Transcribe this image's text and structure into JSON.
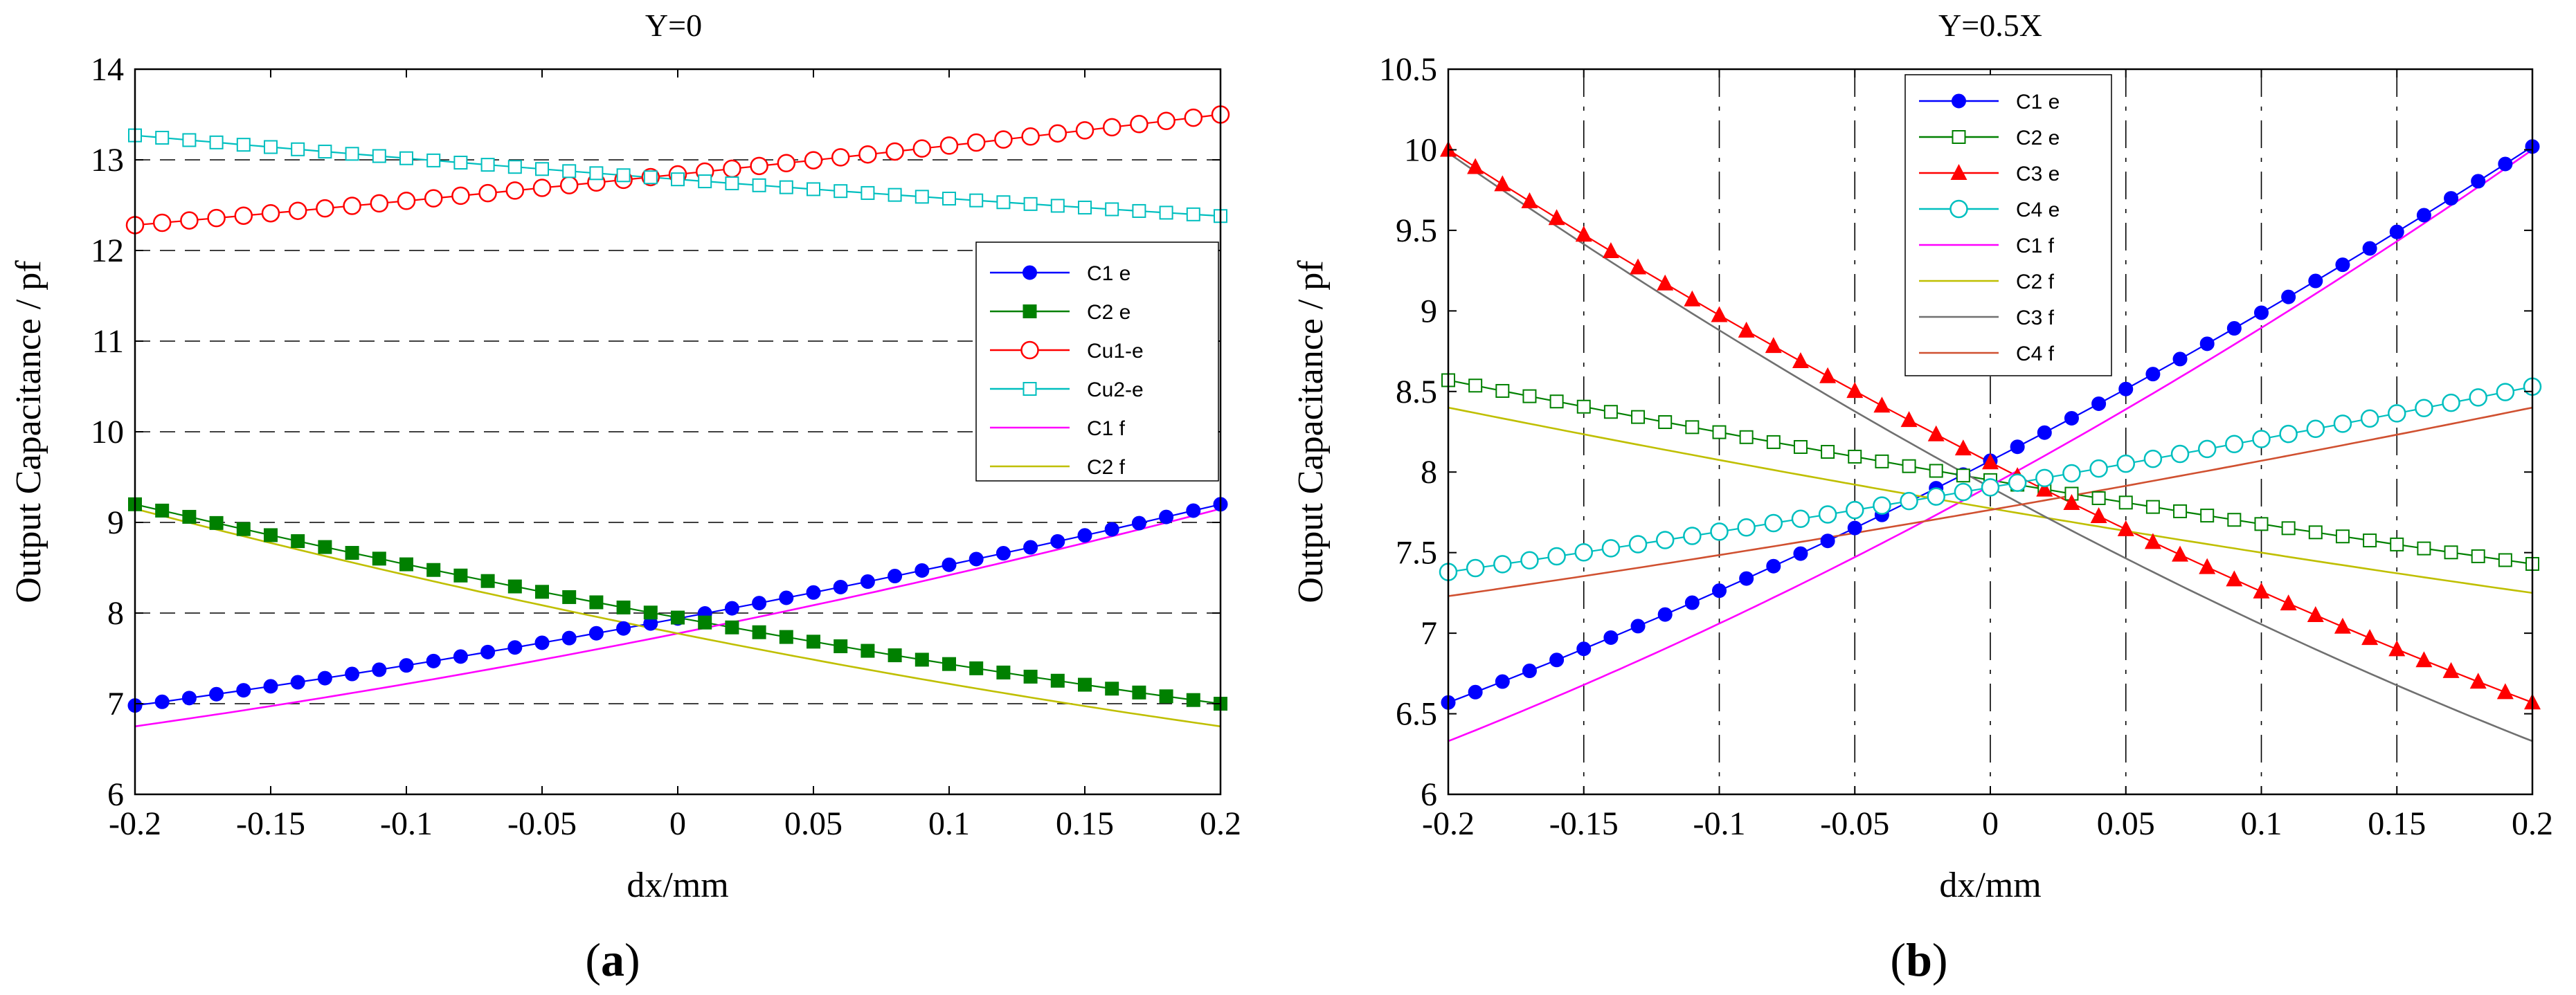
{
  "chart_data": [
    {
      "panel_label": "a",
      "type": "line",
      "title": "Y=0",
      "xlabel": "dx/mm",
      "ylabel": "Output Capacitance / pf",
      "xlim": [
        -0.2,
        0.2
      ],
      "ylim": [
        6,
        14
      ],
      "xticks": [
        -0.2,
        -0.15,
        -0.1,
        -0.05,
        0,
        0.05,
        0.1,
        0.15,
        0.2
      ],
      "xtick_labels": [
        "-0.2",
        "-0.15",
        "-0.1",
        "-0.05",
        "0",
        "0.05",
        "0.1",
        "0.15",
        "0.2"
      ],
      "yticks": [
        6,
        7,
        8,
        9,
        10,
        11,
        12,
        13,
        14
      ],
      "ytick_labels": [
        "6",
        "7",
        "8",
        "9",
        "10",
        "11",
        "12",
        "13",
        "14"
      ],
      "grid": "horizontal dashed",
      "legend_position": "right",
      "series": [
        {
          "name": "C1 e",
          "color": "#0000ff",
          "marker": "filled-circle",
          "x_start": -0.2,
          "x_end": 0.2,
          "y_start": 6.98,
          "y_end": 9.2,
          "curve": 0.3,
          "n_points": 41
        },
        {
          "name": "C2 e",
          "color": "#008000",
          "marker": "filled-square",
          "x_start": -0.2,
          "x_end": 0.2,
          "y_start": 9.2,
          "y_end": 7.0,
          "curve": 0.3,
          "n_points": 41
        },
        {
          "name": "Cu1-e",
          "color": "#ff0000",
          "marker": "open-circle",
          "x_start": -0.2,
          "x_end": 0.2,
          "y_start": 12.28,
          "y_end": 13.5,
          "curve": 0.1,
          "n_points": 41
        },
        {
          "name": "Cu2-e",
          "color": "#00bfbf",
          "marker": "open-square",
          "x_start": -0.2,
          "x_end": 0.2,
          "y_start": 13.27,
          "y_end": 12.38,
          "curve": 0.08,
          "n_points": 41
        },
        {
          "name": "C1 f",
          "color": "#ff00ff",
          "marker": "none",
          "x_start": -0.2,
          "x_end": 0.2,
          "y_start": 6.75,
          "y_end": 9.15,
          "curve": 0.35
        },
        {
          "name": "C2 f",
          "color": "#bfbf00",
          "marker": "none",
          "x_start": -0.2,
          "x_end": 0.2,
          "y_start": 9.15,
          "y_end": 6.75,
          "curve": 0.35
        }
      ]
    },
    {
      "panel_label": "b",
      "type": "line",
      "title": "Y=0.5X",
      "xlabel": "dx/mm",
      "ylabel": "Output Capacitance / pf",
      "xlim": [
        -0.2,
        0.2
      ],
      "ylim": [
        6,
        10.5
      ],
      "xticks": [
        -0.2,
        -0.15,
        -0.1,
        -0.05,
        0,
        0.05,
        0.1,
        0.15,
        0.2
      ],
      "xtick_labels": [
        "-0.2",
        "-0.15",
        "-0.1",
        "-0.05",
        "0",
        "0.05",
        "0.1",
        "0.15",
        "0.2"
      ],
      "yticks": [
        6,
        6.5,
        7,
        7.5,
        8,
        8.5,
        9,
        9.5,
        10,
        10.5
      ],
      "ytick_labels": [
        "6",
        "6.5",
        "7",
        "7.5",
        "8",
        "8.5",
        "9",
        "9.5",
        "10",
        "10.5"
      ],
      "grid": "vertical dashed",
      "legend_position": "top-left",
      "series": [
        {
          "name": "C1 e",
          "color": "#0000ff",
          "marker": "filled-circle",
          "x_start": -0.2,
          "x_end": 0.2,
          "y_start": 6.57,
          "y_end": 10.02,
          "curve": 0.45,
          "n_points": 41
        },
        {
          "name": "C2 e",
          "color": "#008000",
          "marker": "open-square",
          "x_start": -0.2,
          "x_end": 0.2,
          "y_start": 8.57,
          "y_end": 7.43,
          "curve": 0.1,
          "n_points": 41
        },
        {
          "name": "C3 e",
          "color": "#ff0000",
          "marker": "filled-triangle",
          "x_start": -0.2,
          "x_end": 0.2,
          "y_start": 10.0,
          "y_end": 6.57,
          "curve": 0.45,
          "n_points": 41
        },
        {
          "name": "C4 e",
          "color": "#00bfbf",
          "marker": "open-circle",
          "x_start": -0.2,
          "x_end": 0.2,
          "y_start": 7.38,
          "y_end": 8.53,
          "curve": 0.1,
          "n_points": 41
        },
        {
          "name": "C1 f",
          "color": "#ff00ff",
          "marker": "none",
          "x_start": -0.2,
          "x_end": 0.2,
          "y_start": 6.33,
          "y_end": 10.0,
          "curve": 0.5
        },
        {
          "name": "C2 f",
          "color": "#bfbf00",
          "marker": "none",
          "x_start": -0.2,
          "x_end": 0.2,
          "y_start": 8.4,
          "y_end": 7.25,
          "curve": 0.1
        },
        {
          "name": "C3 f",
          "color": "#707070",
          "marker": "none",
          "x_start": -0.2,
          "x_end": 0.2,
          "y_start": 9.98,
          "y_end": 6.33,
          "curve": 0.5
        },
        {
          "name": "C4 f",
          "color": "#d05030",
          "marker": "none",
          "x_start": -0.2,
          "x_end": 0.2,
          "y_start": 7.23,
          "y_end": 8.4,
          "curve": 0.1
        }
      ]
    }
  ]
}
